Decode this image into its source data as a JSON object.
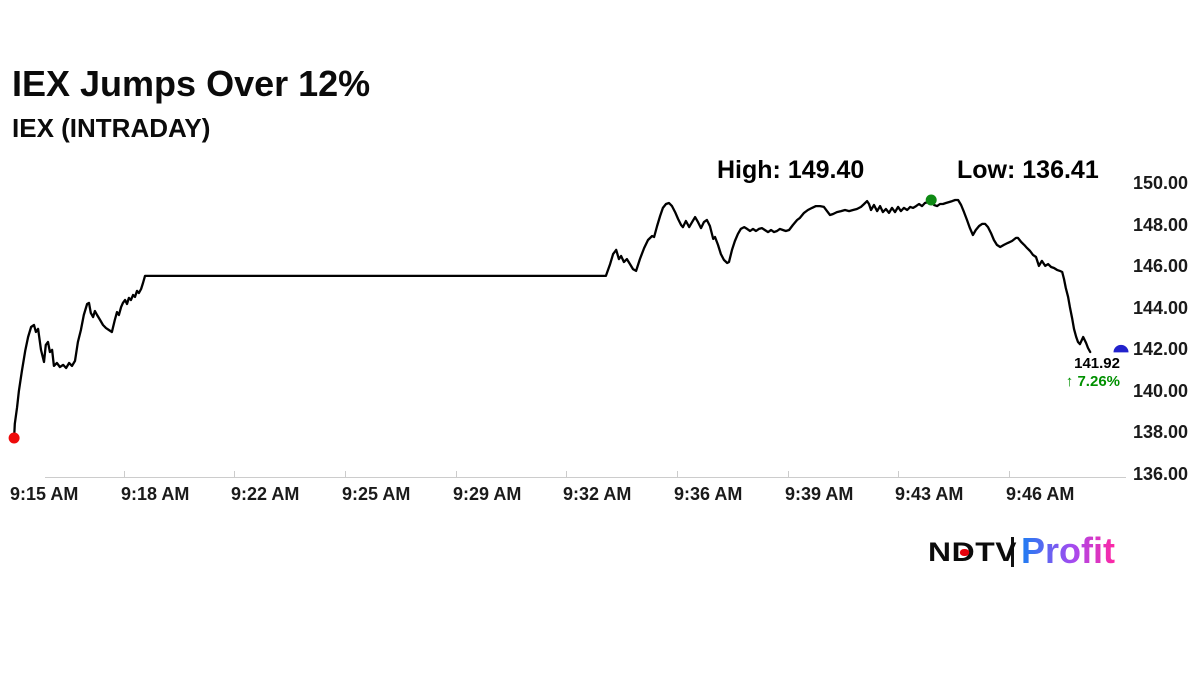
{
  "header": {
    "title": "IEX Jumps Over 12%",
    "subtitle": "IEX (INTRADAY)"
  },
  "annotations": {
    "high": "High: 149.40",
    "low": "Low: 136.41"
  },
  "last_quote": {
    "price": "141.92",
    "change": "↑ 7.26%"
  },
  "logo": {
    "ndtv": "NDTV",
    "profit": "Profit"
  },
  "colors": {
    "line": "#000000",
    "open_marker": "#ee0a0a",
    "high_marker": "#0e8a14",
    "last_marker": "#2222cc",
    "change_text": "#009000",
    "axis_line": "#cccccc",
    "label_text": "#1a1a1a",
    "ndtv_dot": "#e8000b",
    "profit_gradient": [
      "#1d7ef2",
      "#a44bf0",
      "#ff27a3"
    ]
  },
  "chart_data": {
    "type": "line",
    "title": "IEX (INTRADAY)",
    "grid": false,
    "legend": false,
    "y_axis_side": "right",
    "ylim": [
      136,
      150
    ],
    "y_tick_labels": [
      "150.00",
      "148.00",
      "146.00",
      "144.00",
      "142.00",
      "140.00",
      "138.00",
      "136.00"
    ],
    "x_tick_labels": [
      "9:15 AM",
      "9:18 AM",
      "9:22 AM",
      "9:25 AM",
      "9:29 AM",
      "9:32 AM",
      "9:36 AM",
      "9:39 AM",
      "9:43 AM",
      "9:46 AM"
    ],
    "x_tick_minutes": [
      0,
      3,
      7,
      10,
      14,
      17,
      21,
      24,
      28,
      31
    ],
    "high": 149.4,
    "low": 136.41,
    "last": 141.92,
    "change_pct": 7.26,
    "markers": {
      "open": {
        "t": 0.03,
        "price": 137.73
      },
      "high": {
        "t": 28.89,
        "price": 149.18
      },
      "last": {
        "price": 141.95
      }
    },
    "series": [
      {
        "name": "IEX",
        "points": [
          [
            0.03,
            137.73
          ],
          [
            0.05,
            138.41
          ],
          [
            0.11,
            139.22
          ],
          [
            0.16,
            140.0
          ],
          [
            0.24,
            140.96
          ],
          [
            0.33,
            141.92
          ],
          [
            0.41,
            142.59
          ],
          [
            0.49,
            143.07
          ],
          [
            0.57,
            143.17
          ],
          [
            0.62,
            142.83
          ],
          [
            0.68,
            142.98
          ],
          [
            0.76,
            141.97
          ],
          [
            0.84,
            141.39
          ],
          [
            0.89,
            142.21
          ],
          [
            0.95,
            142.35
          ],
          [
            1.0,
            141.87
          ],
          [
            1.06,
            141.97
          ],
          [
            1.11,
            141.2
          ],
          [
            1.19,
            141.34
          ],
          [
            1.27,
            141.15
          ],
          [
            1.36,
            141.25
          ],
          [
            1.44,
            141.1
          ],
          [
            1.52,
            141.34
          ],
          [
            1.6,
            141.2
          ],
          [
            1.68,
            141.44
          ],
          [
            1.76,
            142.35
          ],
          [
            1.84,
            142.93
          ],
          [
            1.92,
            143.65
          ],
          [
            2.01,
            144.18
          ],
          [
            2.06,
            144.23
          ],
          [
            2.11,
            143.75
          ],
          [
            2.17,
            143.55
          ],
          [
            2.22,
            143.84
          ],
          [
            2.28,
            143.65
          ],
          [
            2.36,
            143.41
          ],
          [
            2.44,
            143.17
          ],
          [
            2.52,
            143.02
          ],
          [
            2.6,
            142.93
          ],
          [
            2.68,
            142.83
          ],
          [
            2.76,
            143.41
          ],
          [
            2.82,
            143.79
          ],
          [
            2.87,
            143.65
          ],
          [
            2.93,
            144.03
          ],
          [
            2.98,
            144.23
          ],
          [
            3.05,
            144.37
          ],
          [
            3.12,
            144.18
          ],
          [
            3.19,
            144.47
          ],
          [
            3.26,
            144.37
          ],
          [
            3.34,
            144.61
          ],
          [
            3.41,
            144.52
          ],
          [
            3.48,
            144.81
          ],
          [
            3.55,
            144.71
          ],
          [
            3.63,
            144.9
          ],
          [
            3.7,
            145.19
          ],
          [
            3.77,
            145.53
          ],
          [
            18.43,
            145.53
          ],
          [
            18.58,
            146.1
          ],
          [
            18.69,
            146.58
          ],
          [
            18.8,
            146.78
          ],
          [
            18.9,
            146.34
          ],
          [
            18.98,
            146.49
          ],
          [
            19.08,
            146.2
          ],
          [
            19.19,
            146.34
          ],
          [
            19.3,
            146.1
          ],
          [
            19.41,
            145.86
          ],
          [
            19.52,
            145.77
          ],
          [
            19.66,
            146.34
          ],
          [
            19.81,
            146.87
          ],
          [
            19.95,
            147.26
          ],
          [
            20.1,
            147.45
          ],
          [
            20.17,
            147.4
          ],
          [
            20.28,
            147.93
          ],
          [
            20.39,
            148.41
          ],
          [
            20.49,
            148.8
          ],
          [
            20.6,
            148.99
          ],
          [
            20.71,
            149.04
          ],
          [
            20.82,
            148.89
          ],
          [
            20.93,
            148.6
          ],
          [
            21.03,
            148.27
          ],
          [
            21.11,
            147.98
          ],
          [
            21.16,
            147.88
          ],
          [
            21.24,
            148.17
          ],
          [
            21.33,
            147.88
          ],
          [
            21.41,
            148.12
          ],
          [
            21.49,
            148.36
          ],
          [
            21.57,
            148.12
          ],
          [
            21.65,
            147.83
          ],
          [
            21.73,
            148.12
          ],
          [
            21.81,
            148.22
          ],
          [
            21.89,
            147.93
          ],
          [
            21.98,
            147.31
          ],
          [
            22.03,
            147.4
          ],
          [
            22.11,
            147.02
          ],
          [
            22.19,
            146.58
          ],
          [
            22.27,
            146.3
          ],
          [
            22.36,
            146.15
          ],
          [
            22.41,
            146.2
          ],
          [
            22.49,
            146.78
          ],
          [
            22.57,
            147.21
          ],
          [
            22.65,
            147.55
          ],
          [
            22.73,
            147.79
          ],
          [
            22.82,
            147.88
          ],
          [
            22.9,
            147.79
          ],
          [
            22.98,
            147.69
          ],
          [
            23.06,
            147.79
          ],
          [
            23.14,
            147.69
          ],
          [
            23.22,
            147.79
          ],
          [
            23.3,
            147.83
          ],
          [
            23.38,
            147.74
          ],
          [
            23.47,
            147.64
          ],
          [
            23.55,
            147.74
          ],
          [
            23.63,
            147.64
          ],
          [
            23.71,
            147.69
          ],
          [
            23.79,
            147.79
          ],
          [
            23.87,
            147.74
          ],
          [
            23.95,
            147.69
          ],
          [
            24.05,
            147.74
          ],
          [
            24.19,
            147.98
          ],
          [
            24.34,
            148.22
          ],
          [
            24.44,
            148.32
          ],
          [
            24.59,
            148.56
          ],
          [
            24.73,
            148.7
          ],
          [
            24.88,
            148.8
          ],
          [
            25.02,
            148.89
          ],
          [
            25.17,
            148.89
          ],
          [
            25.31,
            148.85
          ],
          [
            25.42,
            148.65
          ],
          [
            25.53,
            148.46
          ],
          [
            25.64,
            148.51
          ],
          [
            25.78,
            148.6
          ],
          [
            25.93,
            148.65
          ],
          [
            26.07,
            148.7
          ],
          [
            26.22,
            148.65
          ],
          [
            26.36,
            148.7
          ],
          [
            26.5,
            148.75
          ],
          [
            26.65,
            148.85
          ],
          [
            26.76,
            148.99
          ],
          [
            26.87,
            149.13
          ],
          [
            26.94,
            148.99
          ],
          [
            27.01,
            148.7
          ],
          [
            27.12,
            148.94
          ],
          [
            27.23,
            148.65
          ],
          [
            27.34,
            148.89
          ],
          [
            27.44,
            148.6
          ],
          [
            27.55,
            148.75
          ],
          [
            27.66,
            148.56
          ],
          [
            27.77,
            148.8
          ],
          [
            27.88,
            148.6
          ],
          [
            27.99,
            148.85
          ],
          [
            28.07,
            148.65
          ],
          [
            28.15,
            148.8
          ],
          [
            28.24,
            148.7
          ],
          [
            28.32,
            148.85
          ],
          [
            28.4,
            148.8
          ],
          [
            28.48,
            148.89
          ],
          [
            28.56,
            148.99
          ],
          [
            28.64,
            148.89
          ],
          [
            28.72,
            149.04
          ],
          [
            28.8,
            149.08
          ],
          [
            28.89,
            149.18
          ],
          [
            28.97,
            148.94
          ],
          [
            29.05,
            148.89
          ],
          [
            29.13,
            148.99
          ],
          [
            29.21,
            148.99
          ],
          [
            29.29,
            149.04
          ],
          [
            29.37,
            149.08
          ],
          [
            29.46,
            149.13
          ],
          [
            29.54,
            149.18
          ],
          [
            29.62,
            149.18
          ],
          [
            29.7,
            148.94
          ],
          [
            29.78,
            148.6
          ],
          [
            29.86,
            148.22
          ],
          [
            29.94,
            147.83
          ],
          [
            30.02,
            147.5
          ],
          [
            30.1,
            147.74
          ],
          [
            30.19,
            147.93
          ],
          [
            30.27,
            148.03
          ],
          [
            30.35,
            148.03
          ],
          [
            30.43,
            147.88
          ],
          [
            30.51,
            147.59
          ],
          [
            30.59,
            147.26
          ],
          [
            30.67,
            147.02
          ],
          [
            30.76,
            146.92
          ],
          [
            30.86,
            147.02
          ],
          [
            30.97,
            147.12
          ],
          [
            31.08,
            147.21
          ],
          [
            31.19,
            147.36
          ],
          [
            31.24,
            147.36
          ],
          [
            31.33,
            147.16
          ],
          [
            31.41,
            147.02
          ],
          [
            31.49,
            146.87
          ],
          [
            31.57,
            146.73
          ],
          [
            31.65,
            146.54
          ],
          [
            31.73,
            146.44
          ],
          [
            31.81,
            146.01
          ],
          [
            31.89,
            146.25
          ],
          [
            31.98,
            146.01
          ],
          [
            32.06,
            146.1
          ],
          [
            32.14,
            145.96
          ],
          [
            32.22,
            145.91
          ],
          [
            32.3,
            145.82
          ],
          [
            32.38,
            145.77
          ],
          [
            32.44,
            145.72
          ],
          [
            32.49,
            145.38
          ],
          [
            32.54,
            144.95
          ],
          [
            32.6,
            144.52
          ],
          [
            32.65,
            144.03
          ],
          [
            32.71,
            143.5
          ],
          [
            32.76,
            142.98
          ],
          [
            32.82,
            142.59
          ],
          [
            32.87,
            142.35
          ],
          [
            32.92,
            142.25
          ],
          [
            33.01,
            142.59
          ],
          [
            33.09,
            142.3
          ],
          [
            33.14,
            142.06
          ],
          [
            33.2,
            141.87
          ]
        ]
      }
    ]
  }
}
